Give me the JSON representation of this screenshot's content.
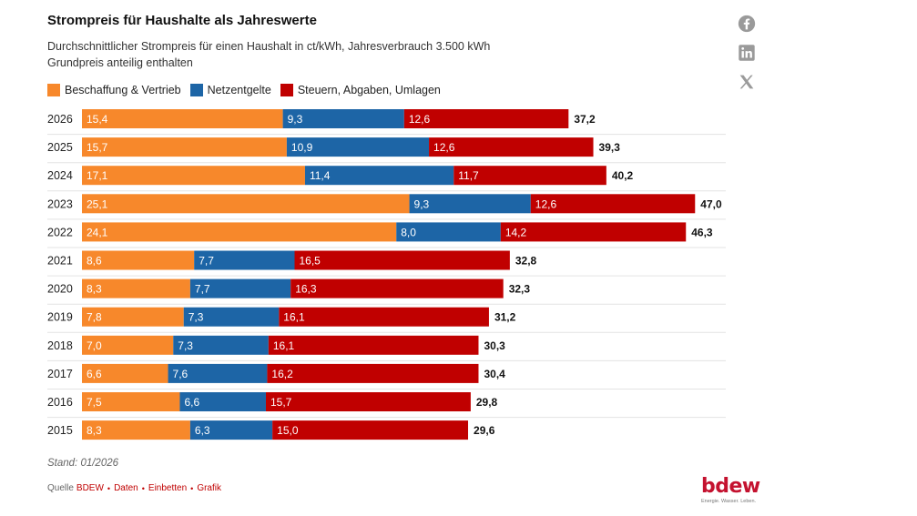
{
  "title": "Strompreis für Haushalte als Jahreswerte",
  "subtitle_line1": "Durchschnittlicher Strompreis für einen Haushalt in ct/kWh, Jahresverbrauch 3.500 kWh",
  "subtitle_line2": "Grundpreis anteilig enthalten",
  "social": {
    "facebook": "facebook-icon",
    "linkedin": "linkedin-icon",
    "x": "x-icon"
  },
  "chart_data": {
    "type": "bar",
    "orientation": "horizontal",
    "stacked": true,
    "title": "Strompreis für Haushalte als Jahreswerte",
    "unit": "ct/kWh",
    "categories": [
      "2026",
      "2025",
      "2024",
      "2023",
      "2022",
      "2021",
      "2020",
      "2019",
      "2018",
      "2017",
      "2016",
      "2015"
    ],
    "series": [
      {
        "name": "Beschaffung & Vertrieb",
        "color": "#f7882b",
        "values": [
          15.4,
          15.7,
          17.1,
          25.1,
          24.1,
          8.6,
          8.3,
          7.8,
          7.0,
          6.6,
          7.5,
          8.3
        ],
        "labels": [
          "15,4",
          "15,7",
          "17,1",
          "25,1",
          "24,1",
          "8,6",
          "8,3",
          "7,8",
          "7,0",
          "6,6",
          "7,5",
          "8,3"
        ]
      },
      {
        "name": "Netzentgelte",
        "color": "#1d65a6",
        "values": [
          9.3,
          10.9,
          11.4,
          9.3,
          8.0,
          7.7,
          7.7,
          7.3,
          7.3,
          7.6,
          6.6,
          6.3
        ],
        "labels": [
          "9,3",
          "10,9",
          "11,4",
          "9,3",
          "8,0",
          "7,7",
          "7,7",
          "7,3",
          "7,3",
          "7,6",
          "6,6",
          "6,3"
        ]
      },
      {
        "name": "Steuern, Abgaben, Umlagen",
        "color": "#c00000",
        "values": [
          12.6,
          12.6,
          11.7,
          12.6,
          14.2,
          16.5,
          16.3,
          16.1,
          16.1,
          16.2,
          15.7,
          15.0
        ],
        "labels": [
          "12,6",
          "12,6",
          "11,7",
          "12,6",
          "14,2",
          "16,5",
          "16,3",
          "16,1",
          "16,1",
          "16,2",
          "15,7",
          "15,0"
        ]
      }
    ],
    "totals": [
      37.2,
      39.3,
      40.2,
      47.0,
      46.3,
      32.8,
      32.3,
      31.2,
      30.3,
      30.4,
      29.8,
      29.6
    ],
    "total_labels": [
      "37,2",
      "39,3",
      "40,2",
      "47,0",
      "46,3",
      "32,8",
      "32,3",
      "31,2",
      "30,3",
      "30,4",
      "29,8",
      "29,6"
    ],
    "xlim": [
      0,
      47
    ]
  },
  "stand": "Stand: 01/2026",
  "footer": {
    "quelle_label": "Quelle",
    "quelle_value": "BDEW",
    "daten": "Daten",
    "einbetten": "Einbetten",
    "grafik": "Grafik"
  },
  "logo": {
    "text": "bdew",
    "tagline": "Energie. Wasser. Leben."
  }
}
